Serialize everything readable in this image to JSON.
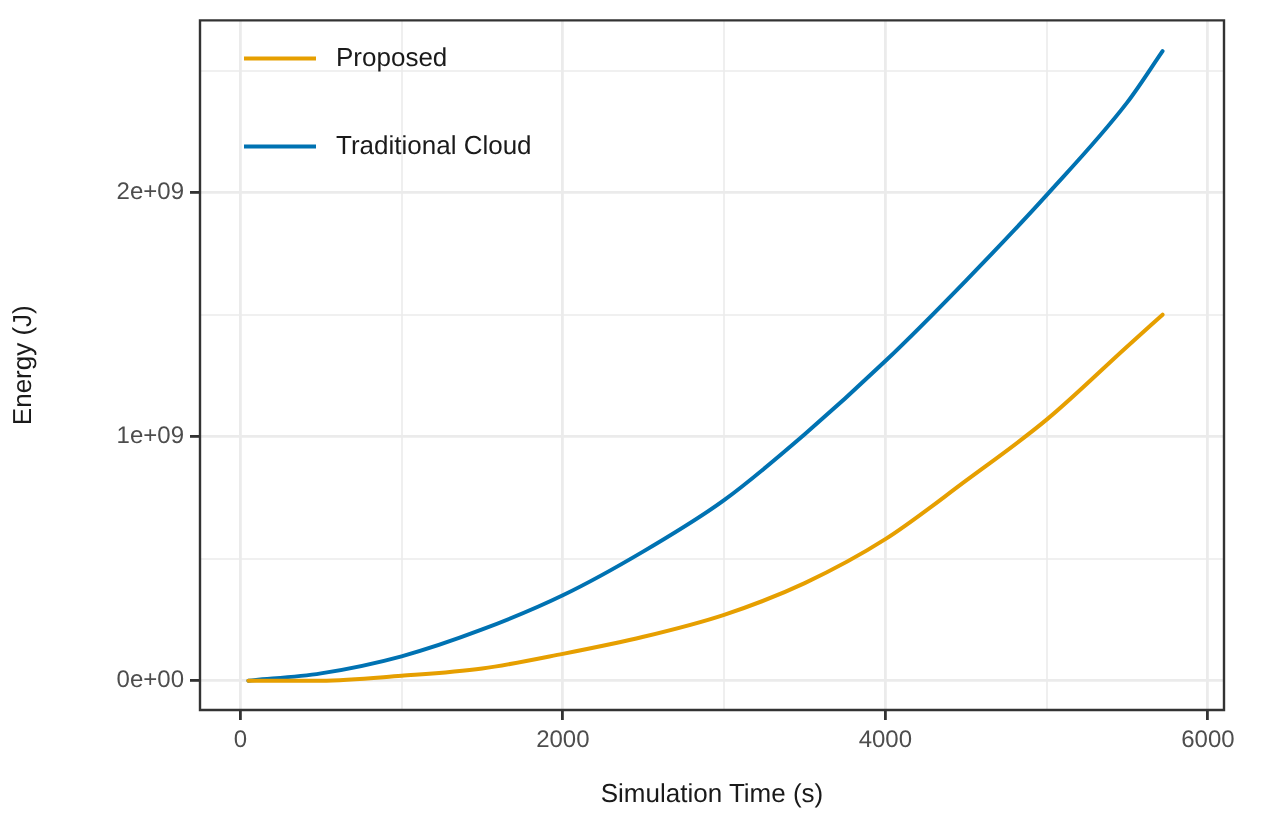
{
  "chart_data": {
    "type": "line",
    "xlabel": "Simulation Time (s)",
    "ylabel": "Energy (J)",
    "x": [
      50,
      500,
      1000,
      1500,
      2000,
      2500,
      3000,
      3500,
      4000,
      4500,
      5000,
      5500,
      5719
    ],
    "series": [
      {
        "name": "Proposed",
        "color": "#e69f00",
        "values": [
          0,
          0,
          20000000,
          50000000,
          110000000,
          180000000,
          270000000,
          400000000,
          580000000,
          820000000,
          1070000000,
          1370000000,
          1500000000
        ]
      },
      {
        "name": "Traditional Cloud",
        "color": "#0072b2",
        "values": [
          0,
          30000000,
          100000000,
          210000000,
          350000000,
          530000000,
          740000000,
          1010000000,
          1310000000,
          1640000000,
          1990000000,
          2370000000,
          2580000000
        ]
      }
    ],
    "xlim": [
      -250,
      6100
    ],
    "xticks": [
      0,
      {
        "value": 1000,
        "label": null
      },
      2000,
      {
        "value": 3000,
        "label": null
      },
      4000,
      {
        "value": 5000,
        "label": null
      },
      6000
    ],
    "ylim": [
      -120000000,
      2706000000
    ],
    "yticks": [
      {
        "value": 0,
        "label": "0e+00"
      },
      {
        "value": 500000000,
        "label": null
      },
      {
        "value": 1000000000,
        "label": "1e+09"
      },
      {
        "value": 1500000000,
        "label": null
      },
      {
        "value": 2000000000,
        "label": "2e+09"
      },
      {
        "value": 2500000000,
        "label": null
      }
    ],
    "grid": true,
    "legend": "top left",
    "marker": "none",
    "line_style": "solid"
  }
}
